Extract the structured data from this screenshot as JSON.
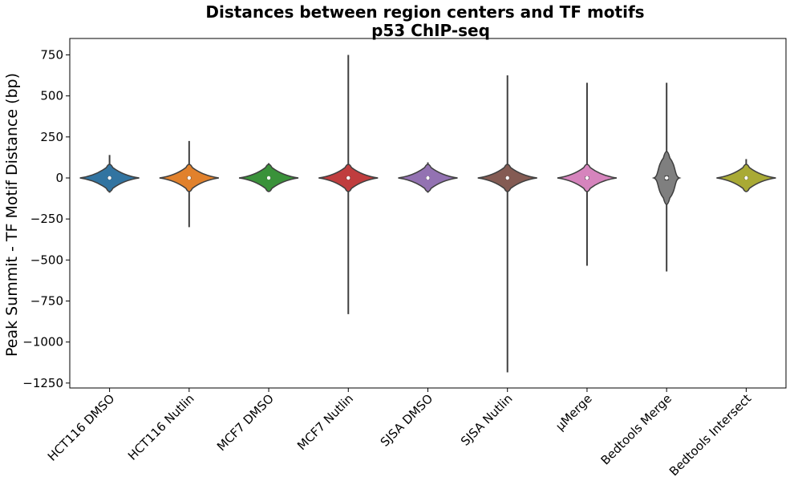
{
  "chart_data": {
    "type": "violin",
    "title": "Distances between region centers and TF motifs",
    "subtitle": "p53 ChIP-seq",
    "xlabel": "",
    "ylabel": "Peak Summit - TF Motif Distance (bp)",
    "ylim": [
      -1280,
      850
    ],
    "yticks": [
      750,
      500,
      250,
      0,
      -250,
      -500,
      -750,
      -1000,
      -1250
    ],
    "ytick_labels": [
      "750",
      "500",
      "250",
      "0",
      "−250",
      "−500",
      "−750",
      "−1000",
      "−1250"
    ],
    "grid": false,
    "legend": "none",
    "categories": [
      "HCT116 DMSO",
      "HCT116 Nutlin",
      "MCF7 DMSO",
      "MCF7 Nutlin",
      "SJSA DMSO",
      "SJSA Nutlin",
      "μMerge",
      "Bedtools Merge",
      "Bedtools Intersect"
    ],
    "series": [
      {
        "category": "HCT116 DMSO",
        "color": "#3274a1",
        "min": -90,
        "max": 140,
        "median": 0,
        "q1": -8,
        "q3": 8
      },
      {
        "category": "HCT116 Nutlin",
        "color": "#e1812c",
        "min": -300,
        "max": 225,
        "median": 0,
        "q1": -8,
        "q3": 8
      },
      {
        "category": "MCF7 DMSO",
        "color": "#3a923a",
        "min": -50,
        "max": 90,
        "median": 0,
        "q1": -6,
        "q3": 6
      },
      {
        "category": "MCF7 Nutlin",
        "color": "#c03d3e",
        "min": -830,
        "max": 750,
        "median": 0,
        "q1": -8,
        "q3": 8
      },
      {
        "category": "SJSA DMSO",
        "color": "#9372b2",
        "min": -90,
        "max": 95,
        "median": 0,
        "q1": -8,
        "q3": 8
      },
      {
        "category": "SJSA Nutlin",
        "color": "#845b53",
        "min": -1185,
        "max": 625,
        "median": 0,
        "q1": -8,
        "q3": 8
      },
      {
        "category": "μMerge",
        "color": "#d684bd",
        "min": -535,
        "max": 580,
        "median": 0,
        "q1": -10,
        "q3": 10
      },
      {
        "category": "Bedtools Merge",
        "color": "#7f7f7f",
        "min": -570,
        "max": 580,
        "median": 0,
        "q1": -15,
        "q3": 15
      },
      {
        "category": "Bedtools Intersect",
        "color": "#a9aa35",
        "min": -55,
        "max": 115,
        "median": 0,
        "q1": -8,
        "q3": 8
      }
    ]
  }
}
